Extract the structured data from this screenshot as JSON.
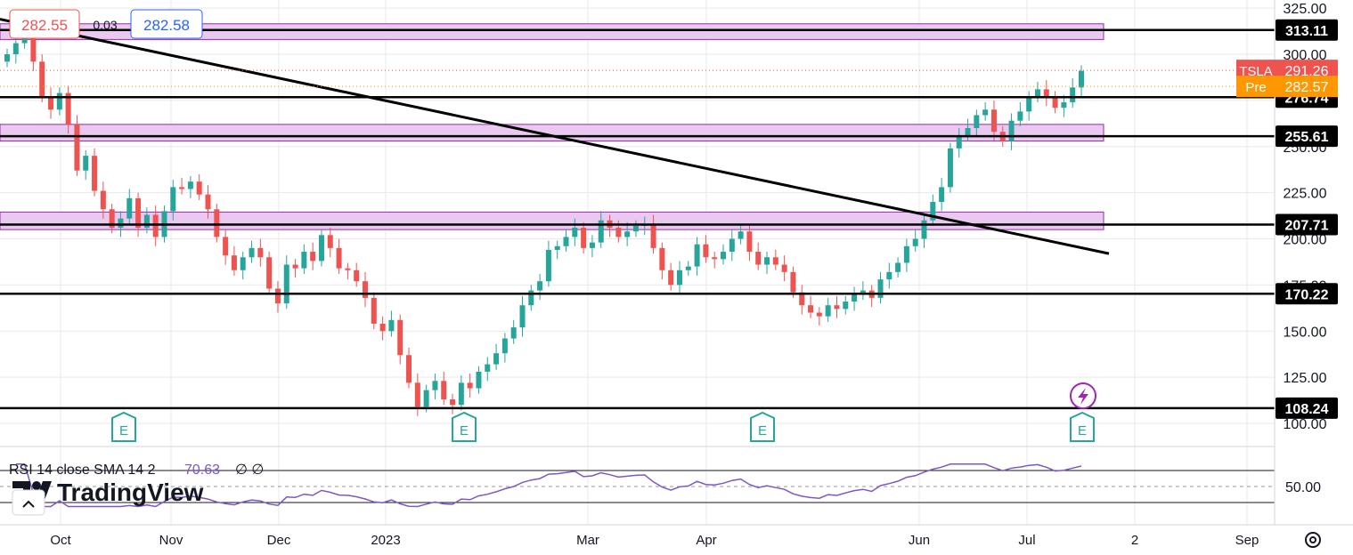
{
  "header": {
    "bid": "282.55",
    "spread": "0.03",
    "ask": "282.58"
  },
  "colors": {
    "up": "#26a69a",
    "down": "#ef5350",
    "zone_fill": "#e9c9f0",
    "zone_stroke": "#9c27b0",
    "line": "#000000",
    "rsi": "#7e57c2",
    "grid": "#e9e9e9",
    "tsla_badge": "#ef5350",
    "pre_badge": "#ff9800"
  },
  "chart_data": {
    "type": "candlestick",
    "ylim": [
      90,
      325
    ],
    "y_ticks": [
      "100.00",
      "125.00",
      "150.00",
      "175.00",
      "200.00",
      "225.00",
      "250.00",
      "275.00",
      "300.00",
      "325.00"
    ],
    "x_labels": [
      "Oct",
      "Nov",
      "Dec",
      "2023",
      "Mar",
      "Apr",
      "Jun",
      "Jul",
      "2",
      "Sep"
    ],
    "horizontal_levels": [
      {
        "value": 313.11,
        "label": "313.11"
      },
      {
        "value": 276.74,
        "label": "276.74"
      },
      {
        "value": 255.61,
        "label": "255.61"
      },
      {
        "value": 207.71,
        "label": "207.71"
      },
      {
        "value": 170.22,
        "label": "170.22"
      },
      {
        "value": 108.24,
        "label": "108.24"
      }
    ],
    "zones": [
      {
        "from": 308.0,
        "to": 316.5
      },
      {
        "from": 253.0,
        "to": 262.0
      },
      {
        "from": 205.0,
        "to": 214.5
      }
    ],
    "trendline": {
      "from": [
        0,
        319.0
      ],
      "to": [
        1245,
        192.0
      ]
    },
    "price_labels": [
      {
        "name": "TSLA",
        "value": "291.26"
      },
      {
        "name": "Pre",
        "value": "282.57"
      }
    ],
    "earnings_markers": [
      "E",
      "E",
      "E",
      "E"
    ],
    "closes": [
      300,
      306,
      310,
      296,
      277,
      270,
      279,
      262,
      237,
      245,
      226,
      216,
      206,
      211,
      222,
      206,
      213,
      201,
      215,
      228,
      227,
      231,
      224,
      216,
      201,
      191,
      183,
      190,
      195,
      190,
      173,
      165,
      186,
      184,
      193,
      188,
      202,
      195,
      184,
      183,
      177,
      168,
      154,
      150,
      156,
      137,
      122,
      109,
      118,
      123,
      113,
      110,
      122,
      119,
      128,
      132,
      138,
      146,
      152,
      164,
      172,
      177,
      194,
      196,
      201,
      206,
      195,
      198,
      210,
      206,
      201,
      204,
      207,
      208,
      195,
      183,
      175,
      183,
      185,
      197,
      190,
      189,
      193,
      200,
      204,
      193,
      186,
      190,
      186,
      182,
      171,
      164,
      160,
      158,
      164,
      162,
      166,
      170,
      172,
      168,
      178,
      182,
      187,
      196,
      200,
      210,
      220,
      228,
      249,
      256,
      260,
      267,
      270,
      258,
      253,
      264,
      269,
      277,
      281,
      277,
      271,
      274,
      282,
      291
    ],
    "rsi": {
      "label": "RSI 14 close SMA 14 2",
      "value": "70.63",
      "extra": "∅ ∅",
      "tick": "50.00",
      "levels": [
        70,
        50,
        30
      ]
    }
  },
  "watermark": "TradingView"
}
